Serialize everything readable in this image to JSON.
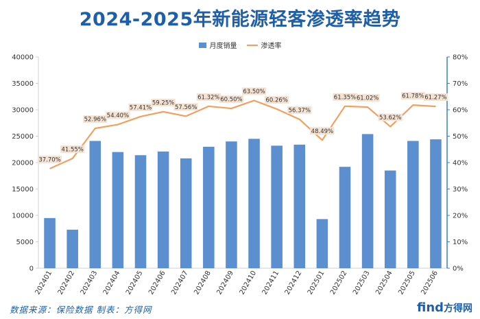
{
  "title": "2024-2025年新能源轻客渗透率趋势",
  "legend": {
    "bar_label": "月度销量",
    "line_label": "渗透率"
  },
  "source_note": "数据来源：保险数据 制表：方得网",
  "watermark": {
    "main": "find",
    "cn": "方得网"
  },
  "colors": {
    "title": "#1f5fa8",
    "bar": "#5b8fd0",
    "line": "#f0a060",
    "label_bg": "#f4e3d2",
    "axis": "#d0d0d0",
    "right_axis": "#3a7fd0"
  },
  "chart_data": {
    "type": "bar",
    "categories": [
      "202401",
      "202402",
      "202403",
      "202404",
      "202405",
      "202406",
      "202407",
      "202408",
      "202409",
      "202410",
      "202411",
      "202412",
      "202501",
      "202502",
      "202503",
      "202504",
      "202505",
      "202506"
    ],
    "series": [
      {
        "name": "月度销量",
        "type": "bar",
        "axis": "left",
        "values": [
          9500,
          7300,
          24100,
          22000,
          21400,
          22100,
          20800,
          23000,
          24000,
          24500,
          23200,
          23400,
          9300,
          19200,
          25400,
          18500,
          24100,
          24400
        ]
      },
      {
        "name": "渗透率",
        "type": "line",
        "axis": "right",
        "values": [
          37.7,
          41.55,
          52.96,
          54.4,
          57.41,
          59.25,
          57.56,
          61.32,
          60.5,
          63.5,
          60.26,
          56.37,
          48.49,
          61.35,
          61.02,
          53.62,
          61.78,
          61.27
        ],
        "labels": [
          "37.70%",
          "41.55%",
          "52.96%",
          "54.40%",
          "57.41%",
          "59.25%",
          "57.56%",
          "61.32%",
          "60.50%",
          "63.50%",
          "60.26%",
          "56.37%",
          "48.49%",
          "61.35%",
          "61.02%",
          "53.62%",
          "61.78%",
          "61.27%"
        ]
      }
    ],
    "y_left": {
      "range": [
        0,
        40000
      ],
      "ticks": [
        "0",
        "5000",
        "10000",
        "15000",
        "20000",
        "25000",
        "30000",
        "35000",
        "40000"
      ]
    },
    "y_right": {
      "range": [
        0,
        80
      ],
      "ticks": [
        "0%",
        "10%",
        "20%",
        "30%",
        "40%",
        "50%",
        "60%",
        "70%",
        "80%"
      ]
    },
    "grid": false,
    "legend_position": "top-center"
  }
}
